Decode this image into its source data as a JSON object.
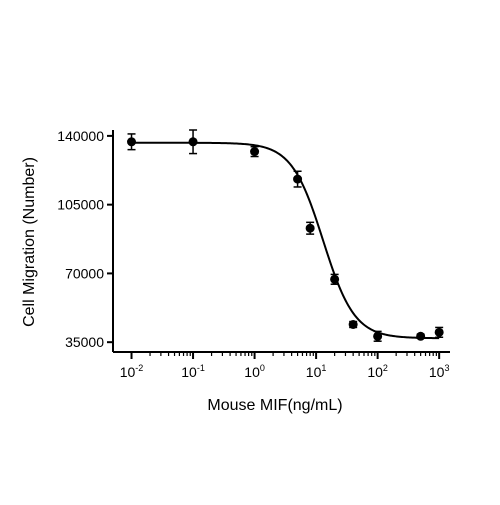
{
  "chart_data": {
    "type": "scatter",
    "xlabel": "Mouse MIF(ng/mL)",
    "ylabel": "Cell Migration (Number)",
    "x_scale": "log",
    "x_ticks": [
      {
        "value": 0.01,
        "base": "10",
        "exp": "-2"
      },
      {
        "value": 0.1,
        "base": "10",
        "exp": "-1"
      },
      {
        "value": 1,
        "base": "10",
        "exp": "0"
      },
      {
        "value": 10,
        "base": "10",
        "exp": "1"
      },
      {
        "value": 100,
        "base": "10",
        "exp": "2"
      },
      {
        "value": 1000,
        "base": "10",
        "exp": "3"
      }
    ],
    "y_ticks": [
      35000,
      70000,
      105000,
      140000
    ],
    "y_tick_labels": [
      "35000",
      "70000",
      "105000",
      "140000"
    ],
    "xlim": [
      0.005,
      1500
    ],
    "ylim": [
      30000,
      143000
    ],
    "grid": false,
    "points": [
      {
        "x": 0.01,
        "y": 137000,
        "err": 4000
      },
      {
        "x": 0.1,
        "y": 137000,
        "err": 6000
      },
      {
        "x": 1,
        "y": 132000,
        "err": 2500
      },
      {
        "x": 5,
        "y": 118000,
        "err": 4000
      },
      {
        "x": 8,
        "y": 93000,
        "err": 3000
      },
      {
        "x": 20,
        "y": 67000,
        "err": 2500
      },
      {
        "x": 40,
        "y": 44000,
        "err": 1500
      },
      {
        "x": 100,
        "y": 38000,
        "err": 2500
      },
      {
        "x": 500,
        "y": 38000,
        "err": 1000
      },
      {
        "x": 1000,
        "y": 40000,
        "err": 2500
      }
    ],
    "fit_curve": {
      "model": "four-parameter logistic",
      "top": 136500,
      "bottom": 37000,
      "ec50": 13,
      "hill": 1.7
    },
    "colors": {
      "marker": "#000000",
      "line": "#000000",
      "axis": "#000000"
    }
  }
}
